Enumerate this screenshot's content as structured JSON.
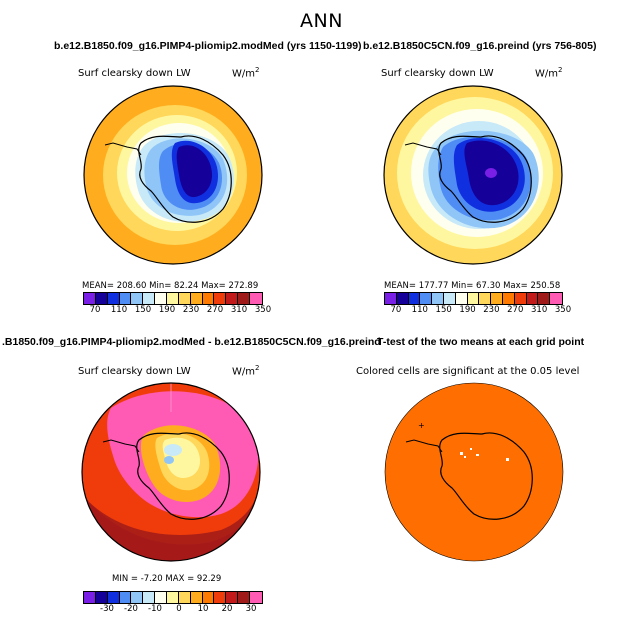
{
  "main_title": "ANN",
  "panels": [
    {
      "title": "b.e12.B1850.f09_g16.PIMP4-pliomip2.modMed (yrs 1150-1199)",
      "variable": "Surf clearsky down LW",
      "units": "W/m",
      "units_exp": "2",
      "stats": "MEAN= 208.60   Min=   82.24   Max= 272.89",
      "colorbar_labels": [
        "70",
        "110",
        "150",
        "190",
        "230",
        "270",
        "310",
        "350"
      ]
    },
    {
      "title": "b.e12.B1850C5CN.f09_g16.preind (yrs 756-805)",
      "variable": "Surf clearsky down LW",
      "units": "W/m",
      "units_exp": "2",
      "stats": "MEAN= 177.77   Min=   67.30   Max= 250.58",
      "colorbar_labels": [
        "70",
        "110",
        "150",
        "190",
        "230",
        "270",
        "310",
        "350"
      ]
    },
    {
      "title": ".B1850.f09_g16.PIMP4-pliomip2.modMed - b.e12.B1850C5CN.f09_g16.preind",
      "variable": "Surf clearsky down LW",
      "units": "W/m",
      "units_exp": "2",
      "stats": "MIN =  -7.20  MAX =   92.29",
      "colorbar_labels": [
        "-30",
        "-20",
        "-10",
        "0",
        "10",
        "20",
        "30"
      ]
    },
    {
      "title": "T-test of the two means at each grid point",
      "variable": "Colored cells are significant at the 0.05 level"
    }
  ],
  "colors": {
    "abs_scale": [
      "#7a1fe6",
      "#15009a",
      "#1030e0",
      "#4f8df5",
      "#8fc6f7",
      "#c8e9f8",
      "#fffff0",
      "#fff7a0",
      "#ffd75a",
      "#ffad1e",
      "#ff7a00",
      "#f03c0a",
      "#c21a1a",
      "#a01a1a",
      "#ff5ab4"
    ],
    "diff_scale": [
      "#7a1fe6",
      "#15009a",
      "#1030e0",
      "#4f8df5",
      "#8fc6f7",
      "#c8e9f8",
      "#fffff0",
      "#fff7a0",
      "#ffd75a",
      "#ffad1e",
      "#ff7a00",
      "#f03c0a",
      "#c21a1a",
      "#a01a1a",
      "#ff5ab4"
    ],
    "significance": "#ff6e00"
  }
}
